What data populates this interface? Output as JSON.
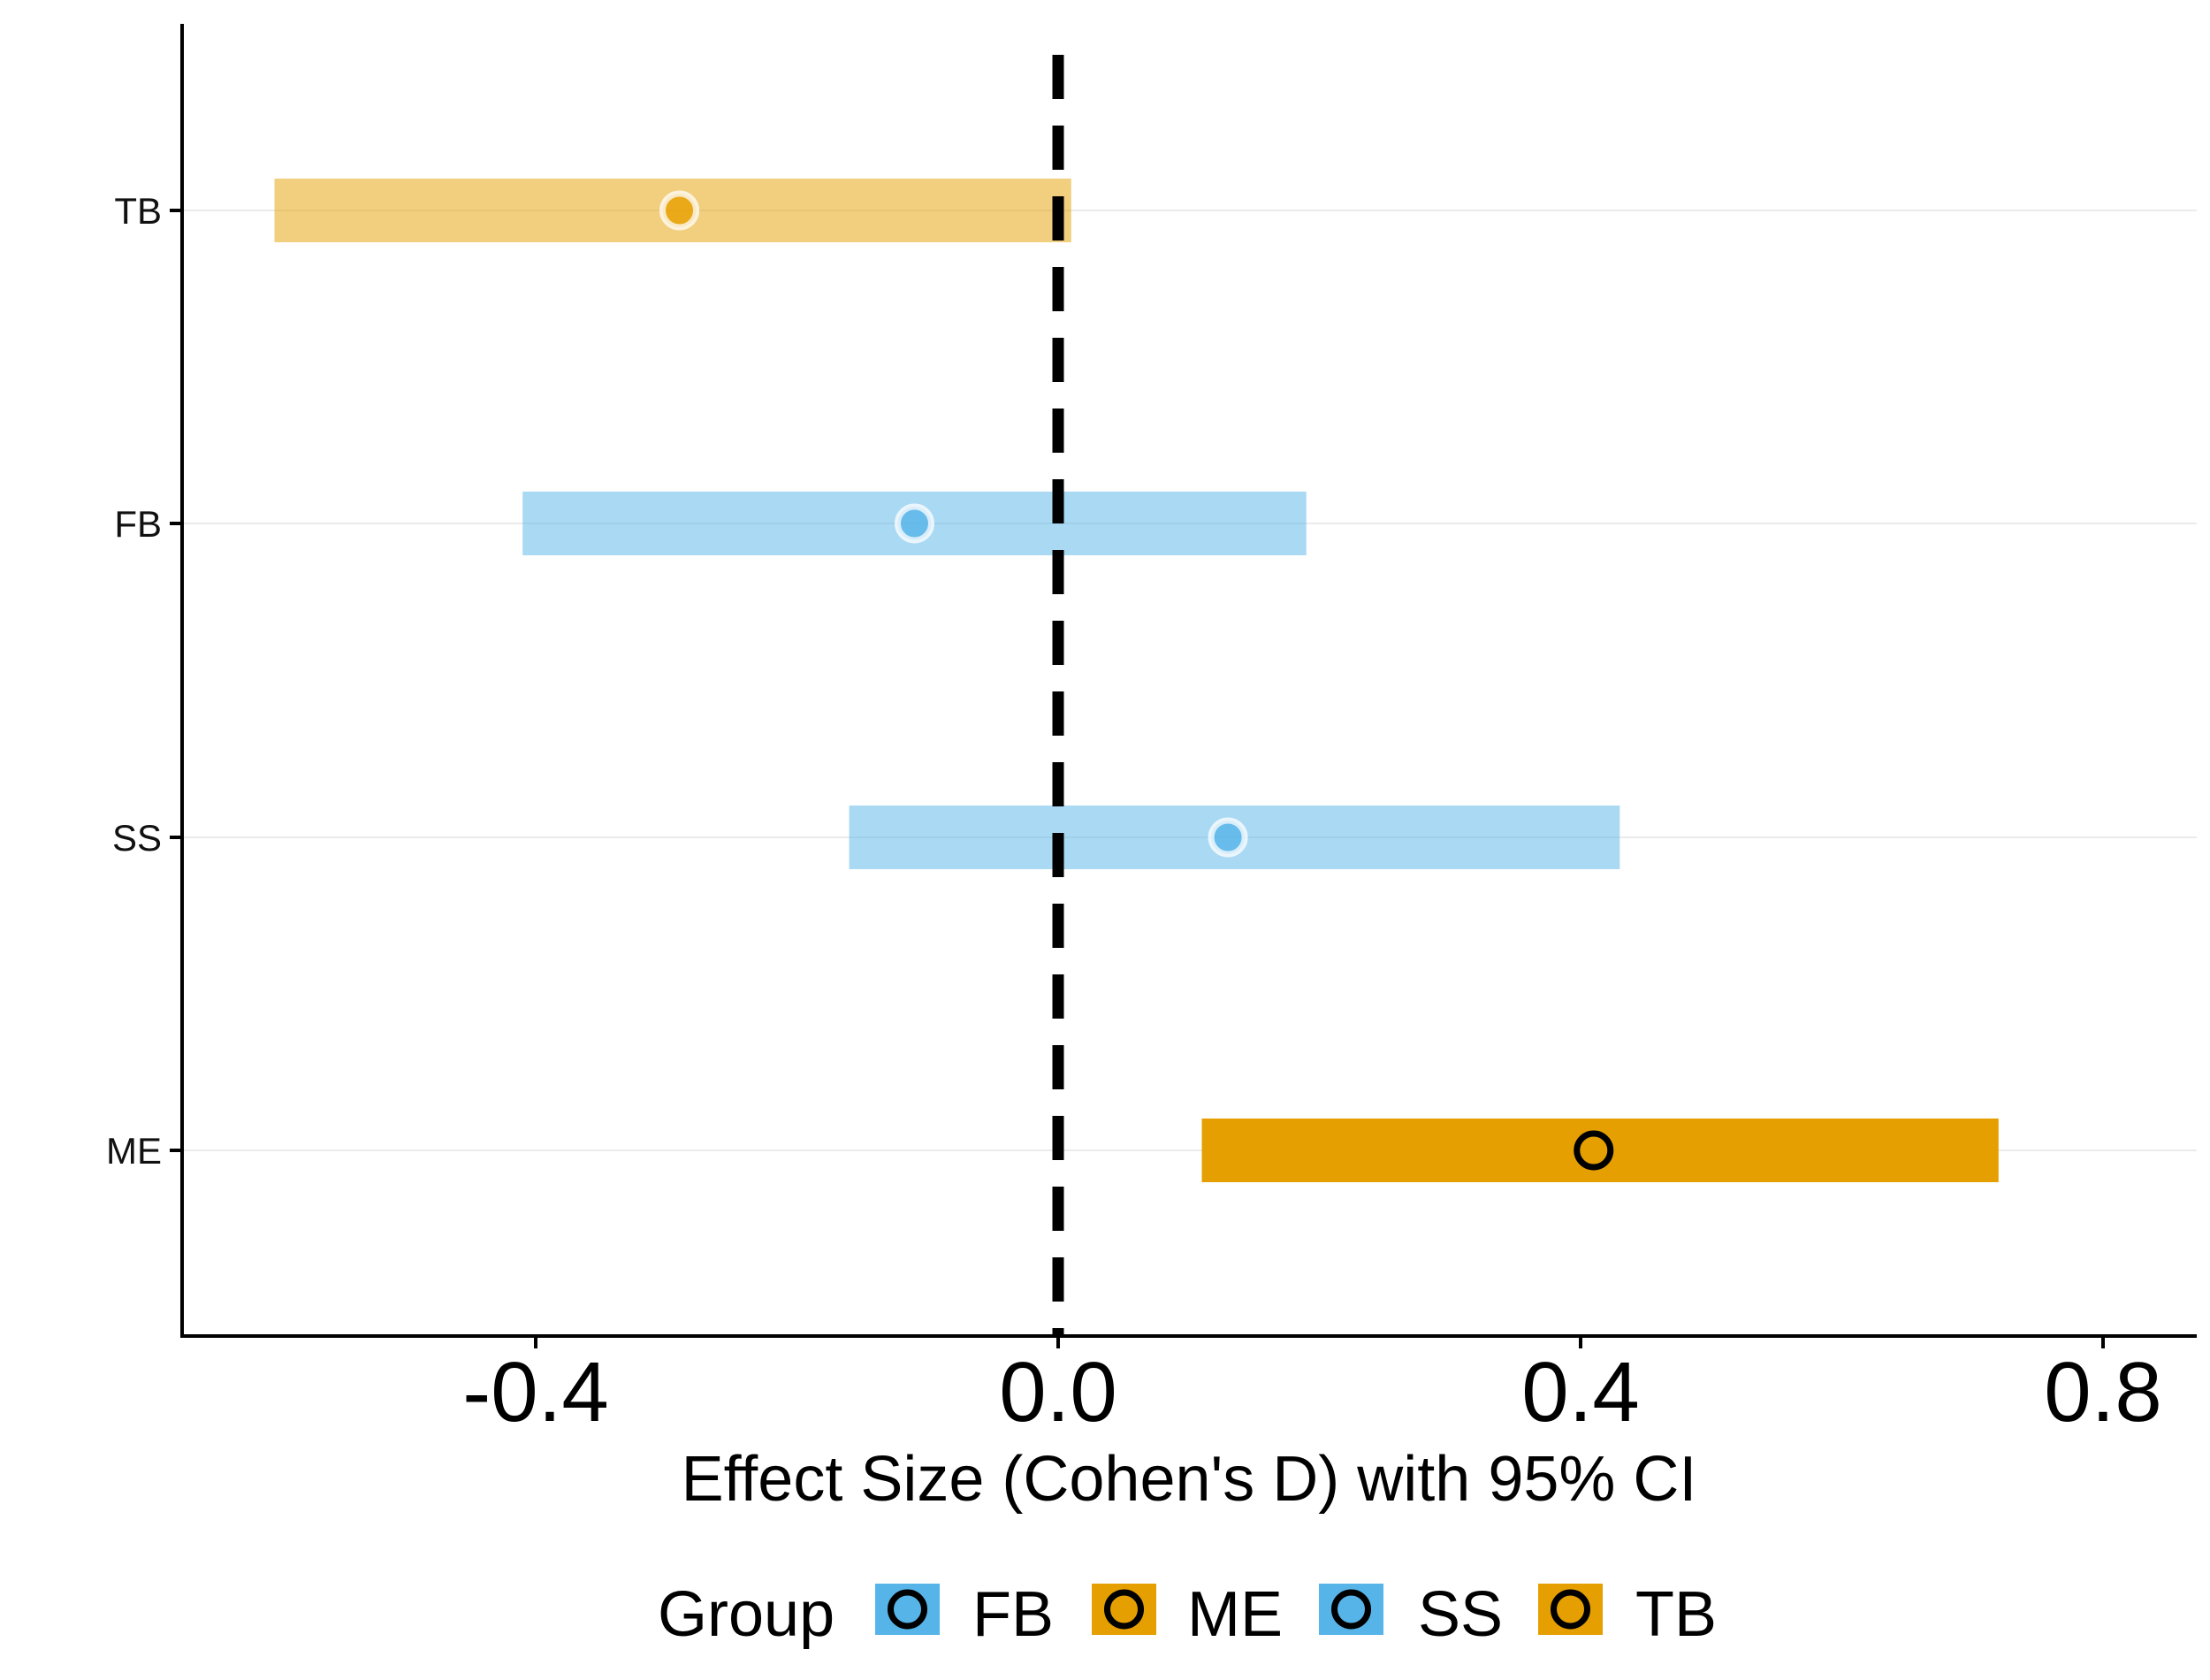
{
  "chart_data": {
    "type": "forest",
    "xlabel": "Effect Size (Cohen's D) with 95% CI",
    "xlim": [
      -0.67,
      0.87
    ],
    "xticks": [
      "-0.4",
      "0.0",
      "0.4",
      "0.8"
    ],
    "xtick_values": [
      -0.4,
      0.0,
      0.4,
      0.8
    ],
    "reference_line": 0.0,
    "categories": [
      "TB",
      "FB",
      "SS",
      "ME"
    ],
    "rows": [
      {
        "label": "TB",
        "group": "TB",
        "estimate": -0.29,
        "ci_low": -0.6,
        "ci_high": 0.01,
        "faded": true
      },
      {
        "label": "FB",
        "group": "FB",
        "estimate": -0.11,
        "ci_low": -0.41,
        "ci_high": 0.19,
        "faded": true
      },
      {
        "label": "SS",
        "group": "SS",
        "estimate": 0.13,
        "ci_low": -0.16,
        "ci_high": 0.43,
        "faded": true
      },
      {
        "label": "ME",
        "group": "ME",
        "estimate": 0.41,
        "ci_low": 0.11,
        "ci_high": 0.72,
        "faded": false
      }
    ],
    "legend": {
      "title": "Group",
      "position": "bottom",
      "items": [
        {
          "label": "FB",
          "color": "#56B4E9"
        },
        {
          "label": "ME",
          "color": "#E69F00"
        },
        {
          "label": "SS",
          "color": "#56B4E9"
        },
        {
          "label": "TB",
          "color": "#E69F00"
        }
      ]
    },
    "colors": {
      "FB": "#56B4E9",
      "SS": "#56B4E9",
      "ME": "#E69F00",
      "TB": "#E69F00"
    },
    "grid": "horizontal-major"
  }
}
